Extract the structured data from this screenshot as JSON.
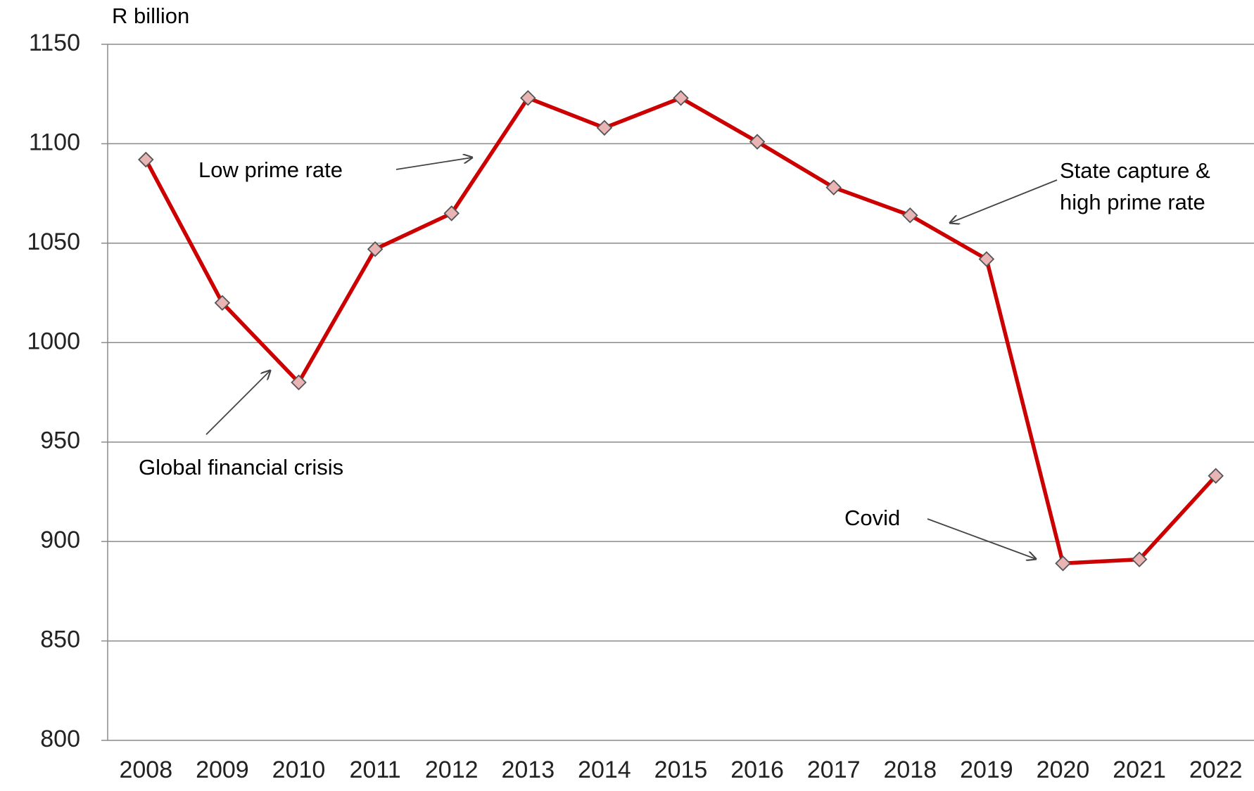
{
  "chart_data": {
    "type": "line",
    "y_axis_label": "R billion",
    "categories": [
      "2008",
      "2009",
      "2010",
      "2011",
      "2012",
      "2013",
      "2014",
      "2015",
      "2016",
      "2017",
      "2018",
      "2019",
      "2020",
      "2021",
      "2022"
    ],
    "series": [
      {
        "color": "#cc0000",
        "marker_color": "#e8b4b4",
        "values": [
          1092,
          1020,
          980,
          1047,
          1065,
          1123,
          1108,
          1123,
          1101,
          1078,
          1064,
          1042,
          889,
          891,
          933
        ]
      }
    ],
    "ylim": [
      800,
      1150
    ],
    "yticks": [
      800,
      850,
      900,
      950,
      1000,
      1050,
      1100,
      1150
    ],
    "grid": true,
    "annotations": [
      "Low prime rate",
      "Global financial crisis",
      "State capture &",
      "high prime rate",
      "Covid"
    ]
  }
}
